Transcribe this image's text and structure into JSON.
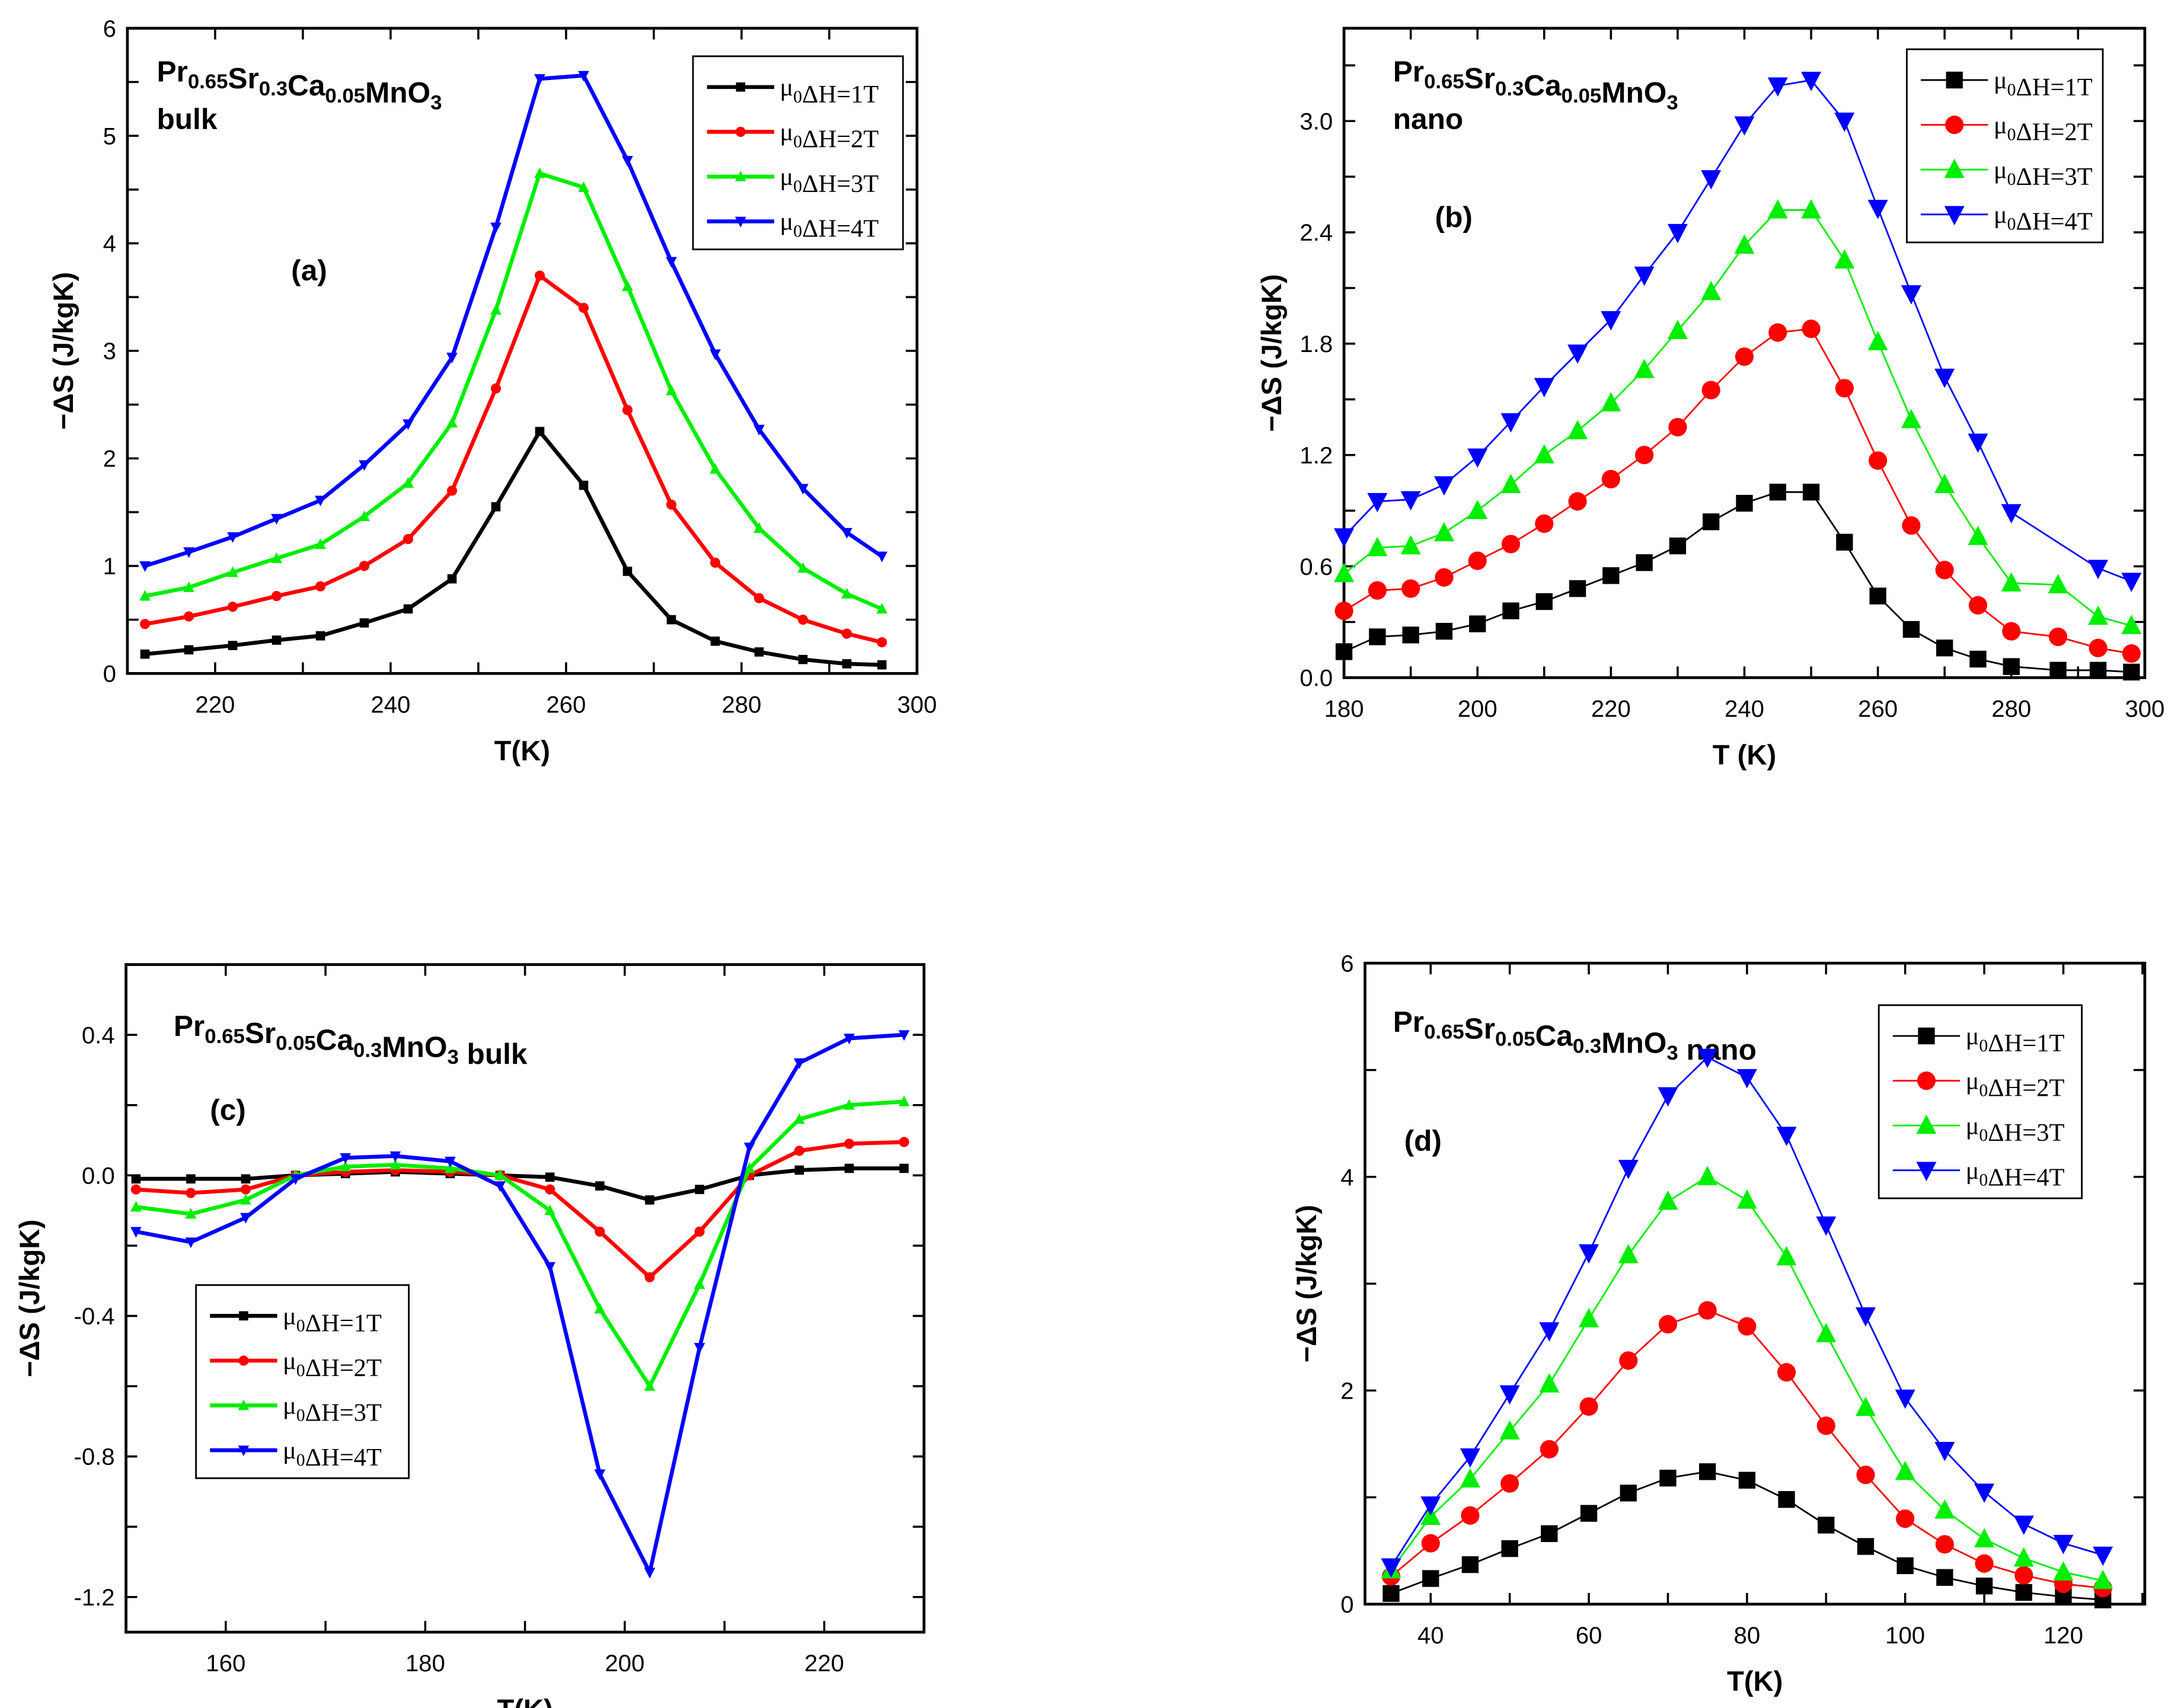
{
  "chart_data": [
    {
      "type": "line",
      "panel_label": "(a)",
      "title_lines": [
        "Pr_{0.65}Sr_{0.3}Ca_{0.05}MnO_{3}",
        "bulk"
      ],
      "xlabel": "T(K)",
      "ylabel": "−ΔS (J/kgK)",
      "xlim": [
        210,
        300
      ],
      "ylim": [
        0,
        6
      ],
      "xticks": [
        220,
        240,
        260,
        280,
        300
      ],
      "yticks": [
        0,
        1,
        2,
        3,
        4,
        5,
        6
      ],
      "ytick_decimals": 0,
      "legend_position": "top-right",
      "style": "thick",
      "x": [
        212,
        217,
        222,
        227,
        232,
        237,
        242,
        247,
        252,
        257,
        262,
        267,
        272,
        277,
        282,
        287,
        292,
        296
      ],
      "series": [
        {
          "name": "μ_{0}ΔH=1T",
          "color": "#000000",
          "marker": "square",
          "values": [
            0.18,
            0.22,
            0.26,
            0.31,
            0.35,
            0.47,
            0.6,
            0.88,
            1.55,
            2.25,
            1.75,
            0.95,
            0.5,
            0.3,
            0.2,
            0.13,
            0.09,
            0.08
          ]
        },
        {
          "name": "μ_{0}ΔH=2T",
          "color": "#ff0000",
          "marker": "circle",
          "values": [
            0.46,
            0.53,
            0.62,
            0.72,
            0.81,
            1.0,
            1.25,
            1.7,
            2.65,
            3.7,
            3.4,
            2.45,
            1.57,
            1.03,
            0.7,
            0.5,
            0.37,
            0.29
          ]
        },
        {
          "name": "μ_{0}ΔH=3T",
          "color": "#00ee00",
          "marker": "triangle-up",
          "values": [
            0.72,
            0.8,
            0.94,
            1.07,
            1.2,
            1.46,
            1.77,
            2.33,
            3.38,
            4.65,
            4.52,
            3.6,
            2.63,
            1.9,
            1.35,
            0.98,
            0.74,
            0.6
          ]
        },
        {
          "name": "μ_{0}ΔH=4T",
          "color": "#0000ff",
          "marker": "triangle-down",
          "values": [
            1.0,
            1.13,
            1.27,
            1.44,
            1.61,
            1.94,
            2.32,
            2.94,
            4.15,
            5.53,
            5.56,
            4.77,
            3.83,
            2.97,
            2.27,
            1.72,
            1.31,
            1.09
          ]
        }
      ]
    },
    {
      "type": "line",
      "panel_label": "(b)",
      "title_lines": [
        "Pr_{0.65}Sr_{0.3}Ca_{0.05}MnO_{3}",
        "nano"
      ],
      "xlabel": "T (K)",
      "ylabel": "−ΔS (J/kgK)",
      "xlim": [
        180,
        300
      ],
      "ylim": [
        0,
        3.5
      ],
      "xticks": [
        180,
        200,
        220,
        240,
        260,
        280,
        300
      ],
      "yticks": [
        0,
        0.6,
        1.2,
        1.8,
        2.4,
        3.0
      ],
      "ytick_decimals": 1,
      "legend_position": "top-right",
      "style": "thin",
      "x": [
        180,
        185,
        190,
        195,
        200,
        205,
        210,
        215,
        220,
        225,
        230,
        235,
        240,
        245,
        250,
        255,
        260,
        265,
        270,
        275,
        280,
        287,
        293,
        298
      ],
      "series": [
        {
          "name": "μ_{0}ΔH=1T",
          "color": "#000000",
          "marker": "square",
          "values": [
            0.14,
            0.22,
            0.23,
            0.25,
            0.29,
            0.36,
            0.41,
            0.48,
            0.55,
            0.62,
            0.71,
            0.84,
            0.94,
            1.0,
            1.0,
            0.73,
            0.44,
            0.26,
            0.16,
            0.1,
            0.06,
            0.04,
            0.04,
            0.03
          ]
        },
        {
          "name": "μ_{0}ΔH=2T",
          "color": "#ff0000",
          "marker": "circle",
          "values": [
            0.36,
            0.47,
            0.48,
            0.54,
            0.63,
            0.72,
            0.83,
            0.95,
            1.07,
            1.2,
            1.35,
            1.55,
            1.73,
            1.86,
            1.88,
            1.56,
            1.17,
            0.82,
            0.58,
            0.39,
            0.25,
            0.22,
            0.16,
            0.13
          ]
        },
        {
          "name": "μ_{0}ΔH=3T",
          "color": "#00ee00",
          "marker": "triangle-up",
          "values": [
            0.56,
            0.7,
            0.71,
            0.78,
            0.9,
            1.04,
            1.2,
            1.33,
            1.48,
            1.66,
            1.87,
            2.08,
            2.33,
            2.52,
            2.52,
            2.25,
            1.81,
            1.39,
            1.04,
            0.76,
            0.51,
            0.5,
            0.33,
            0.28
          ]
        },
        {
          "name": "μ_{0}ΔH=4T",
          "color": "#0000ff",
          "marker": "triangle-down",
          "values": [
            0.76,
            0.95,
            0.96,
            1.04,
            1.19,
            1.38,
            1.57,
            1.75,
            1.93,
            2.17,
            2.4,
            2.69,
            2.98,
            3.19,
            3.22,
            3.0,
            2.53,
            2.07,
            1.62,
            1.27,
            0.89,
            null,
            0.59,
            0.52
          ]
        }
      ]
    },
    {
      "type": "line",
      "panel_label": "(c)",
      "title_lines": [
        "Pr_{0.65}Sr_{0.05}Ca_{0.3}MnO_{3} bulk"
      ],
      "xlabel": "T(K)",
      "ylabel": "−ΔS (J/kgK)",
      "xlim": [
        150,
        230
      ],
      "ylim": [
        -1.3,
        0.6
      ],
      "xticks": [
        160,
        180,
        200,
        220
      ],
      "yticks": [
        -1.2,
        -0.8,
        -0.4,
        0.0,
        0.4
      ],
      "ytick_decimals": 1,
      "legend_position": "center-left",
      "style": "thick",
      "x": [
        151,
        156.5,
        162,
        167,
        172,
        177,
        182.5,
        187.5,
        192.5,
        197.5,
        202.5,
        207.5,
        212.5,
        217.5,
        222.5,
        228
      ],
      "series": [
        {
          "name": "μ_{0}ΔH=1T",
          "color": "#000000",
          "marker": "square",
          "values": [
            -0.01,
            -0.01,
            -0.01,
            0,
            0.005,
            0.01,
            0.005,
            0,
            -0.005,
            -0.03,
            -0.07,
            -0.04,
            0,
            0.015,
            0.02,
            0.02
          ]
        },
        {
          "name": "μ_{0}ΔH=2T",
          "color": "#ff0000",
          "marker": "circle",
          "values": [
            -0.04,
            -0.05,
            -0.04,
            0,
            0.01,
            0.015,
            0.01,
            0,
            -0.04,
            -0.16,
            -0.29,
            -0.16,
            0,
            0.07,
            0.09,
            0.095
          ]
        },
        {
          "name": "μ_{0}ΔH=3T",
          "color": "#00ee00",
          "marker": "triangle-up",
          "values": [
            -0.09,
            -0.11,
            -0.07,
            0,
            0.025,
            0.03,
            0.02,
            0,
            -0.1,
            -0.38,
            -0.6,
            -0.31,
            0.02,
            0.16,
            0.2,
            0.21
          ]
        },
        {
          "name": "μ_{0}ΔH=4T",
          "color": "#0000ff",
          "marker": "triangle-down",
          "values": [
            -0.16,
            -0.19,
            -0.12,
            -0.01,
            0.05,
            0.055,
            0.04,
            -0.03,
            -0.26,
            -0.85,
            -1.13,
            -0.49,
            0.08,
            0.32,
            0.39,
            0.4
          ]
        }
      ]
    },
    {
      "type": "line",
      "panel_label": "(d)",
      "title_lines": [
        "Pr_{0.65}Sr_{0.05}Ca_{0.3}MnO_{3} nano"
      ],
      "xlabel": "T(K)",
      "ylabel": "−ΔS (J/kgK)",
      "xlim": [
        31.7,
        130.3
      ],
      "ylim": [
        0,
        6
      ],
      "xticks": [
        40,
        60,
        80,
        100,
        120
      ],
      "yticks": [
        0,
        2,
        4,
        6
      ],
      "ytick_decimals": 0,
      "legend_position": "top-right",
      "style": "thin",
      "x": [
        35,
        40,
        45,
        50,
        55,
        60,
        65,
        70,
        75,
        80,
        85,
        90,
        95,
        100,
        105,
        110,
        115,
        120,
        125
      ],
      "series": [
        {
          "name": "μ_{0}ΔH=1T",
          "color": "#000000",
          "marker": "square",
          "values": [
            0.1,
            0.24,
            0.37,
            0.52,
            0.66,
            0.85,
            1.04,
            1.18,
            1.24,
            1.16,
            0.98,
            0.74,
            0.54,
            0.36,
            0.25,
            0.17,
            0.11,
            0.07,
            0.04
          ]
        },
        {
          "name": "μ_{0}ΔH=2T",
          "color": "#ff0000",
          "marker": "circle",
          "values": [
            0.26,
            0.57,
            0.83,
            1.13,
            1.45,
            1.85,
            2.28,
            2.62,
            2.75,
            2.6,
            2.17,
            1.67,
            1.21,
            0.8,
            0.56,
            0.38,
            0.27,
            0.19,
            0.15
          ]
        },
        {
          "name": "μ_{0}ΔH=3T",
          "color": "#00ee00",
          "marker": "triangle-up",
          "values": [
            0.32,
            0.82,
            1.17,
            1.62,
            2.06,
            2.67,
            3.27,
            3.77,
            4.0,
            3.78,
            3.25,
            2.53,
            1.84,
            1.24,
            0.88,
            0.61,
            0.43,
            0.3,
            0.22
          ]
        },
        {
          "name": "μ_{0}ΔH=4T",
          "color": "#0000ff",
          "marker": "triangle-down",
          "values": [
            0.35,
            0.93,
            1.38,
            1.97,
            2.56,
            3.29,
            4.08,
            4.76,
            5.12,
            4.93,
            4.39,
            3.55,
            2.7,
            1.93,
            1.44,
            1.05,
            0.75,
            0.57,
            0.46
          ]
        }
      ]
    }
  ]
}
